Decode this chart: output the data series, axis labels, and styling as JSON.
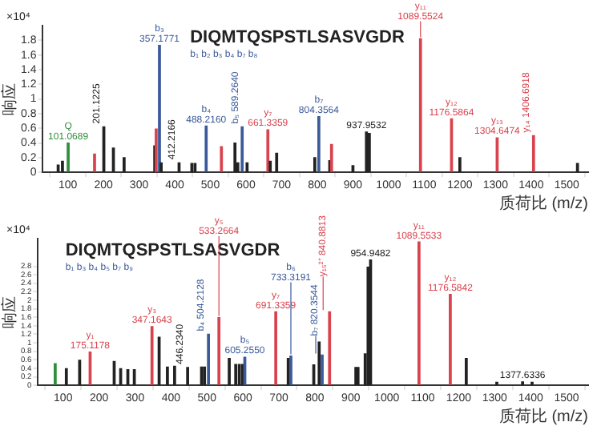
{
  "chart_data": [
    {
      "type": "bar",
      "xlabel": "质荷比 (m/z)",
      "ylabel": "响应",
      "xlim": [
        30,
        1560
      ],
      "xticks": [
        100,
        200,
        300,
        400,
        500,
        600,
        700,
        800,
        900,
        1000,
        1100,
        1200,
        1300,
        1400,
        1500
      ],
      "ylim": [
        0,
        2.0
      ],
      "yticks": [
        0,
        0.2,
        0.4,
        0.6,
        0.8,
        1.0,
        1.2,
        1.4,
        1.6,
        1.8
      ],
      "grid": false,
      "legend": false,
      "x": [
        73,
        85,
        101.0689,
        175.1,
        201.1225,
        228,
        258,
        344,
        348,
        357.1771,
        362,
        412.2166,
        448,
        457,
        488.216,
        531,
        569,
        577,
        589.264,
        603,
        661.3359,
        668,
        686,
        793,
        804.3564,
        835,
        840,
        900,
        937.9532,
        946,
        1089.5524,
        1176.5864,
        1200,
        1304.6474,
        1406.6918,
        1530
      ],
      "values": [
        0.1,
        0.15,
        0.4,
        0.25,
        0.62,
        0.33,
        0.2,
        0.36,
        0.59,
        1.73,
        0.13,
        0.13,
        0.12,
        0.12,
        0.63,
        0.35,
        0.4,
        0.13,
        0.62,
        0.13,
        0.58,
        0.15,
        0.26,
        0.2,
        0.76,
        0.16,
        0.38,
        0.09,
        0.55,
        0.53,
        1.82,
        0.73,
        0.2,
        0.47,
        0.5,
        0.12
      ],
      "colors": [
        "#222222",
        "#222222",
        "#2f8f3a",
        "#d9434e",
        "#222222",
        "#222222",
        "#222222",
        "#222222",
        "#d9434e",
        "#3a5a9a",
        "#222222",
        "#222222",
        "#222222",
        "#222222",
        "#3a5a9a",
        "#d9434e",
        "#222222",
        "#222222",
        "#3a5a9a",
        "#222222",
        "#d9434e",
        "#222222",
        "#222222",
        "#222222",
        "#3a5a9a",
        "#222222",
        "#d9434e",
        "#222222",
        "#222222",
        "#222222",
        "#d9434e",
        "#d9434e",
        "#222222",
        "#d9434e",
        "#d9434e",
        "#222222"
      ],
      "annotations": [
        "×10⁴",
        "DIQMTQSPSTLSASVGDR",
        "b₁ b₂ b₃ b₄ b₇ b₈",
        {
          "text": "Q 101.0689",
          "x": 101.0689,
          "y": 0.4
        },
        {
          "text": "201.1225",
          "x": 201.1225,
          "y": 0.62
        },
        {
          "text": "b₃ 357.1771",
          "x": 357.1771,
          "y": 1.73
        },
        {
          "text": "412.2166",
          "x": 412.2166,
          "y": 0.13
        },
        {
          "text": "b₄ 488.2160",
          "x": 488.216,
          "y": 0.63
        },
        {
          "text": "b₅ 589.2640",
          "x": 589.264,
          "y": 0.62
        },
        {
          "text": "y₇ 661.3359",
          "x": 661.3359,
          "y": 0.58
        },
        {
          "text": "b₇ 804.3564",
          "x": 804.3564,
          "y": 0.76
        },
        {
          "text": "937.9532",
          "x": 937.9532,
          "y": 0.55
        },
        {
          "text": "y₁₁ 1089.5524",
          "x": 1089.5524,
          "y": 1.82
        },
        {
          "text": "y₁₂ 1176.5864",
          "x": 1176.5864,
          "y": 0.73
        },
        {
          "text": "y₁₃ 1304.6474",
          "x": 1304.6474,
          "y": 0.47
        },
        {
          "text": "y₁₄ 1406.6918",
          "x": 1406.6918,
          "y": 0.5
        }
      ]
    },
    {
      "type": "bar",
      "xlabel": "质荷比 (m/z)",
      "ylabel": "响应",
      "xlim": [
        30,
        1560
      ],
      "xticks": [
        100,
        200,
        300,
        400,
        500,
        600,
        700,
        800,
        900,
        1000,
        1100,
        1200,
        1300,
        1400,
        1500
      ],
      "ylim": [
        0,
        3.45
      ],
      "yticks": [
        0,
        0.2,
        0.4,
        0.6,
        0.8,
        1.0,
        1.2,
        1.4,
        1.6,
        1.8,
        2.0,
        2.2,
        2.4,
        2.6,
        2.8
      ],
      "grid": false,
      "legend": false,
      "x": [
        78,
        109,
        146,
        175.1178,
        242,
        260,
        280,
        298,
        347.1643,
        367,
        390,
        410,
        446.234,
        485,
        493,
        504.2128,
        533.2664,
        562,
        580,
        590,
        599,
        605.255,
        691.3359,
        726,
        733.3191,
        797,
        812,
        820.3544,
        840.8813,
        914,
        920,
        940,
        948,
        954.9482,
        1089.5533,
        1176.5842,
        1221,
        1306,
        1377.6336,
        1404
      ],
      "values": [
        0.51,
        0.39,
        0.59,
        0.78,
        0.56,
        0.39,
        0.37,
        0.37,
        1.38,
        1.13,
        0.43,
        0.45,
        0.42,
        0.43,
        0.43,
        1.2,
        1.59,
        0.63,
        0.49,
        0.49,
        0.49,
        0.66,
        1.73,
        0.63,
        0.69,
        0.48,
        1.02,
        0.71,
        1.73,
        0.42,
        0.42,
        0.74,
        2.78,
        2.95,
        3.37,
        2.14,
        0.63,
        0.07,
        0.08,
        0.07
      ],
      "colors": [
        "#2f8f3a",
        "#222222",
        "#222222",
        "#d9434e",
        "#222222",
        "#222222",
        "#222222",
        "#222222",
        "#d9434e",
        "#222222",
        "#222222",
        "#222222",
        "#222222",
        "#222222",
        "#222222",
        "#3a5a9a",
        "#d9434e",
        "#222222",
        "#222222",
        "#222222",
        "#222222",
        "#3a5a9a",
        "#d9434e",
        "#222222",
        "#3a5a9a",
        "#222222",
        "#222222",
        "#3a5a9a",
        "#d9434e",
        "#222222",
        "#222222",
        "#222222",
        "#222222",
        "#222222",
        "#d9434e",
        "#d9434e",
        "#222222",
        "#222222",
        "#222222",
        "#222222"
      ],
      "annotations": [
        "×10⁴",
        "DIQMTQSPSTLSASVGDR",
        "b₁ b₃ b₄ b₅ b₇ b₉",
        {
          "text": "y₁ 175.1178",
          "x": 175.1178,
          "y": 0.78
        },
        {
          "text": "y₃ 347.1643",
          "x": 347.1643,
          "y": 1.38
        },
        {
          "text": "446.2340",
          "x": 446.234,
          "y": 0.42
        },
        {
          "text": "b₄ 504.2128",
          "x": 504.2128,
          "y": 1.2
        },
        {
          "text": "y₅ 533.2664",
          "x": 533.2664,
          "y": 1.59
        },
        {
          "text": "b₅ 605.2550",
          "x": 605.255,
          "y": 0.66
        },
        {
          "text": "y₇ 691.3359",
          "x": 691.3359,
          "y": 1.73
        },
        {
          "text": "b₆ 733.3191",
          "x": 733.3191,
          "y": 0.69
        },
        {
          "text": "b₇ 820.3544",
          "x": 820.3544,
          "y": 0.71
        },
        {
          "text": "y₁₅²⁺ 840.8813",
          "x": 840.8813,
          "y": 1.73
        },
        {
          "text": "954.9482",
          "x": 954.9482,
          "y": 2.95
        },
        {
          "text": "y₁₁ 1089.5533",
          "x": 1089.5533,
          "y": 3.37
        },
        {
          "text": "y₁₂ 1176.5842",
          "x": 1176.5842,
          "y": 2.14
        },
        {
          "text": "1377.6336",
          "x": 1377.6336,
          "y": 0.08
        }
      ]
    }
  ]
}
